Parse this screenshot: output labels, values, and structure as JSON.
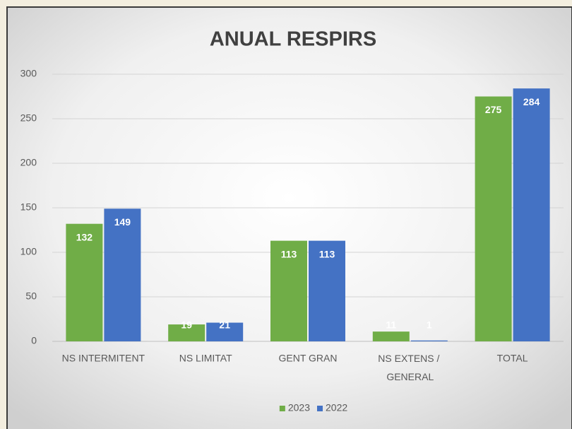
{
  "chart_data": {
    "type": "bar",
    "title": "ANUAL RESPIRS",
    "categories": [
      "NS INTERMITENT",
      "NS LIMITAT",
      "GENT GRAN",
      "NS EXTENS / GENERAL",
      "TOTAL"
    ],
    "series": [
      {
        "name": "2023",
        "color": "#70ad47",
        "values": [
          132,
          19,
          113,
          11,
          275
        ]
      },
      {
        "name": "2022",
        "color": "#4472c4",
        "values": [
          149,
          21,
          113,
          1,
          284
        ]
      }
    ],
    "ylim": [
      0,
      300
    ],
    "yticks": [
      0,
      50,
      100,
      150,
      200,
      250,
      300
    ],
    "grid": true,
    "legend": "bottom"
  }
}
